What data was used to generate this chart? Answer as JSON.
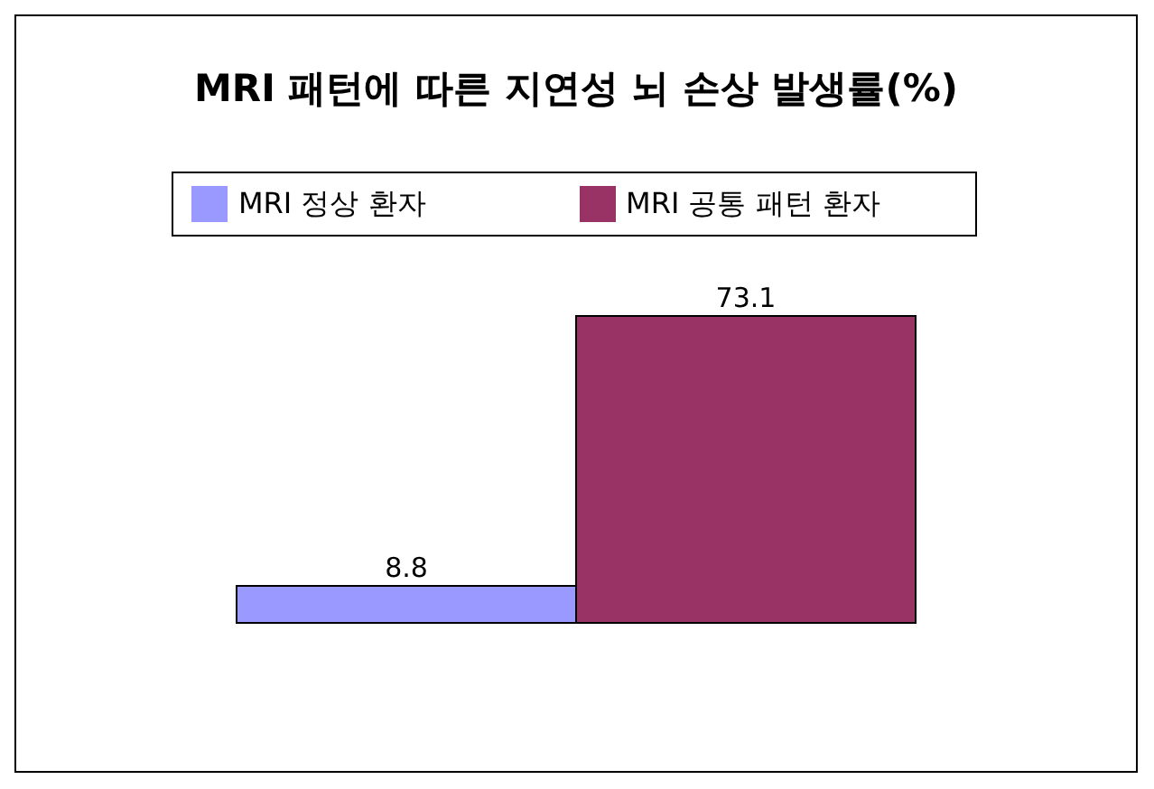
{
  "chart_data": {
    "type": "bar",
    "title": "MRI 패턴에 따른 지연성 뇌 손상 발생률(%)",
    "categories": [
      null
    ],
    "series": [
      {
        "name": "MRI 정상 환자",
        "color": "#9999ff",
        "values": [
          8.8
        ]
      },
      {
        "name": "MRI 공통 패턴 환자",
        "color": "#993366",
        "values": [
          73.1
        ]
      }
    ],
    "data_labels": true,
    "legend": "top",
    "grid": false
  }
}
